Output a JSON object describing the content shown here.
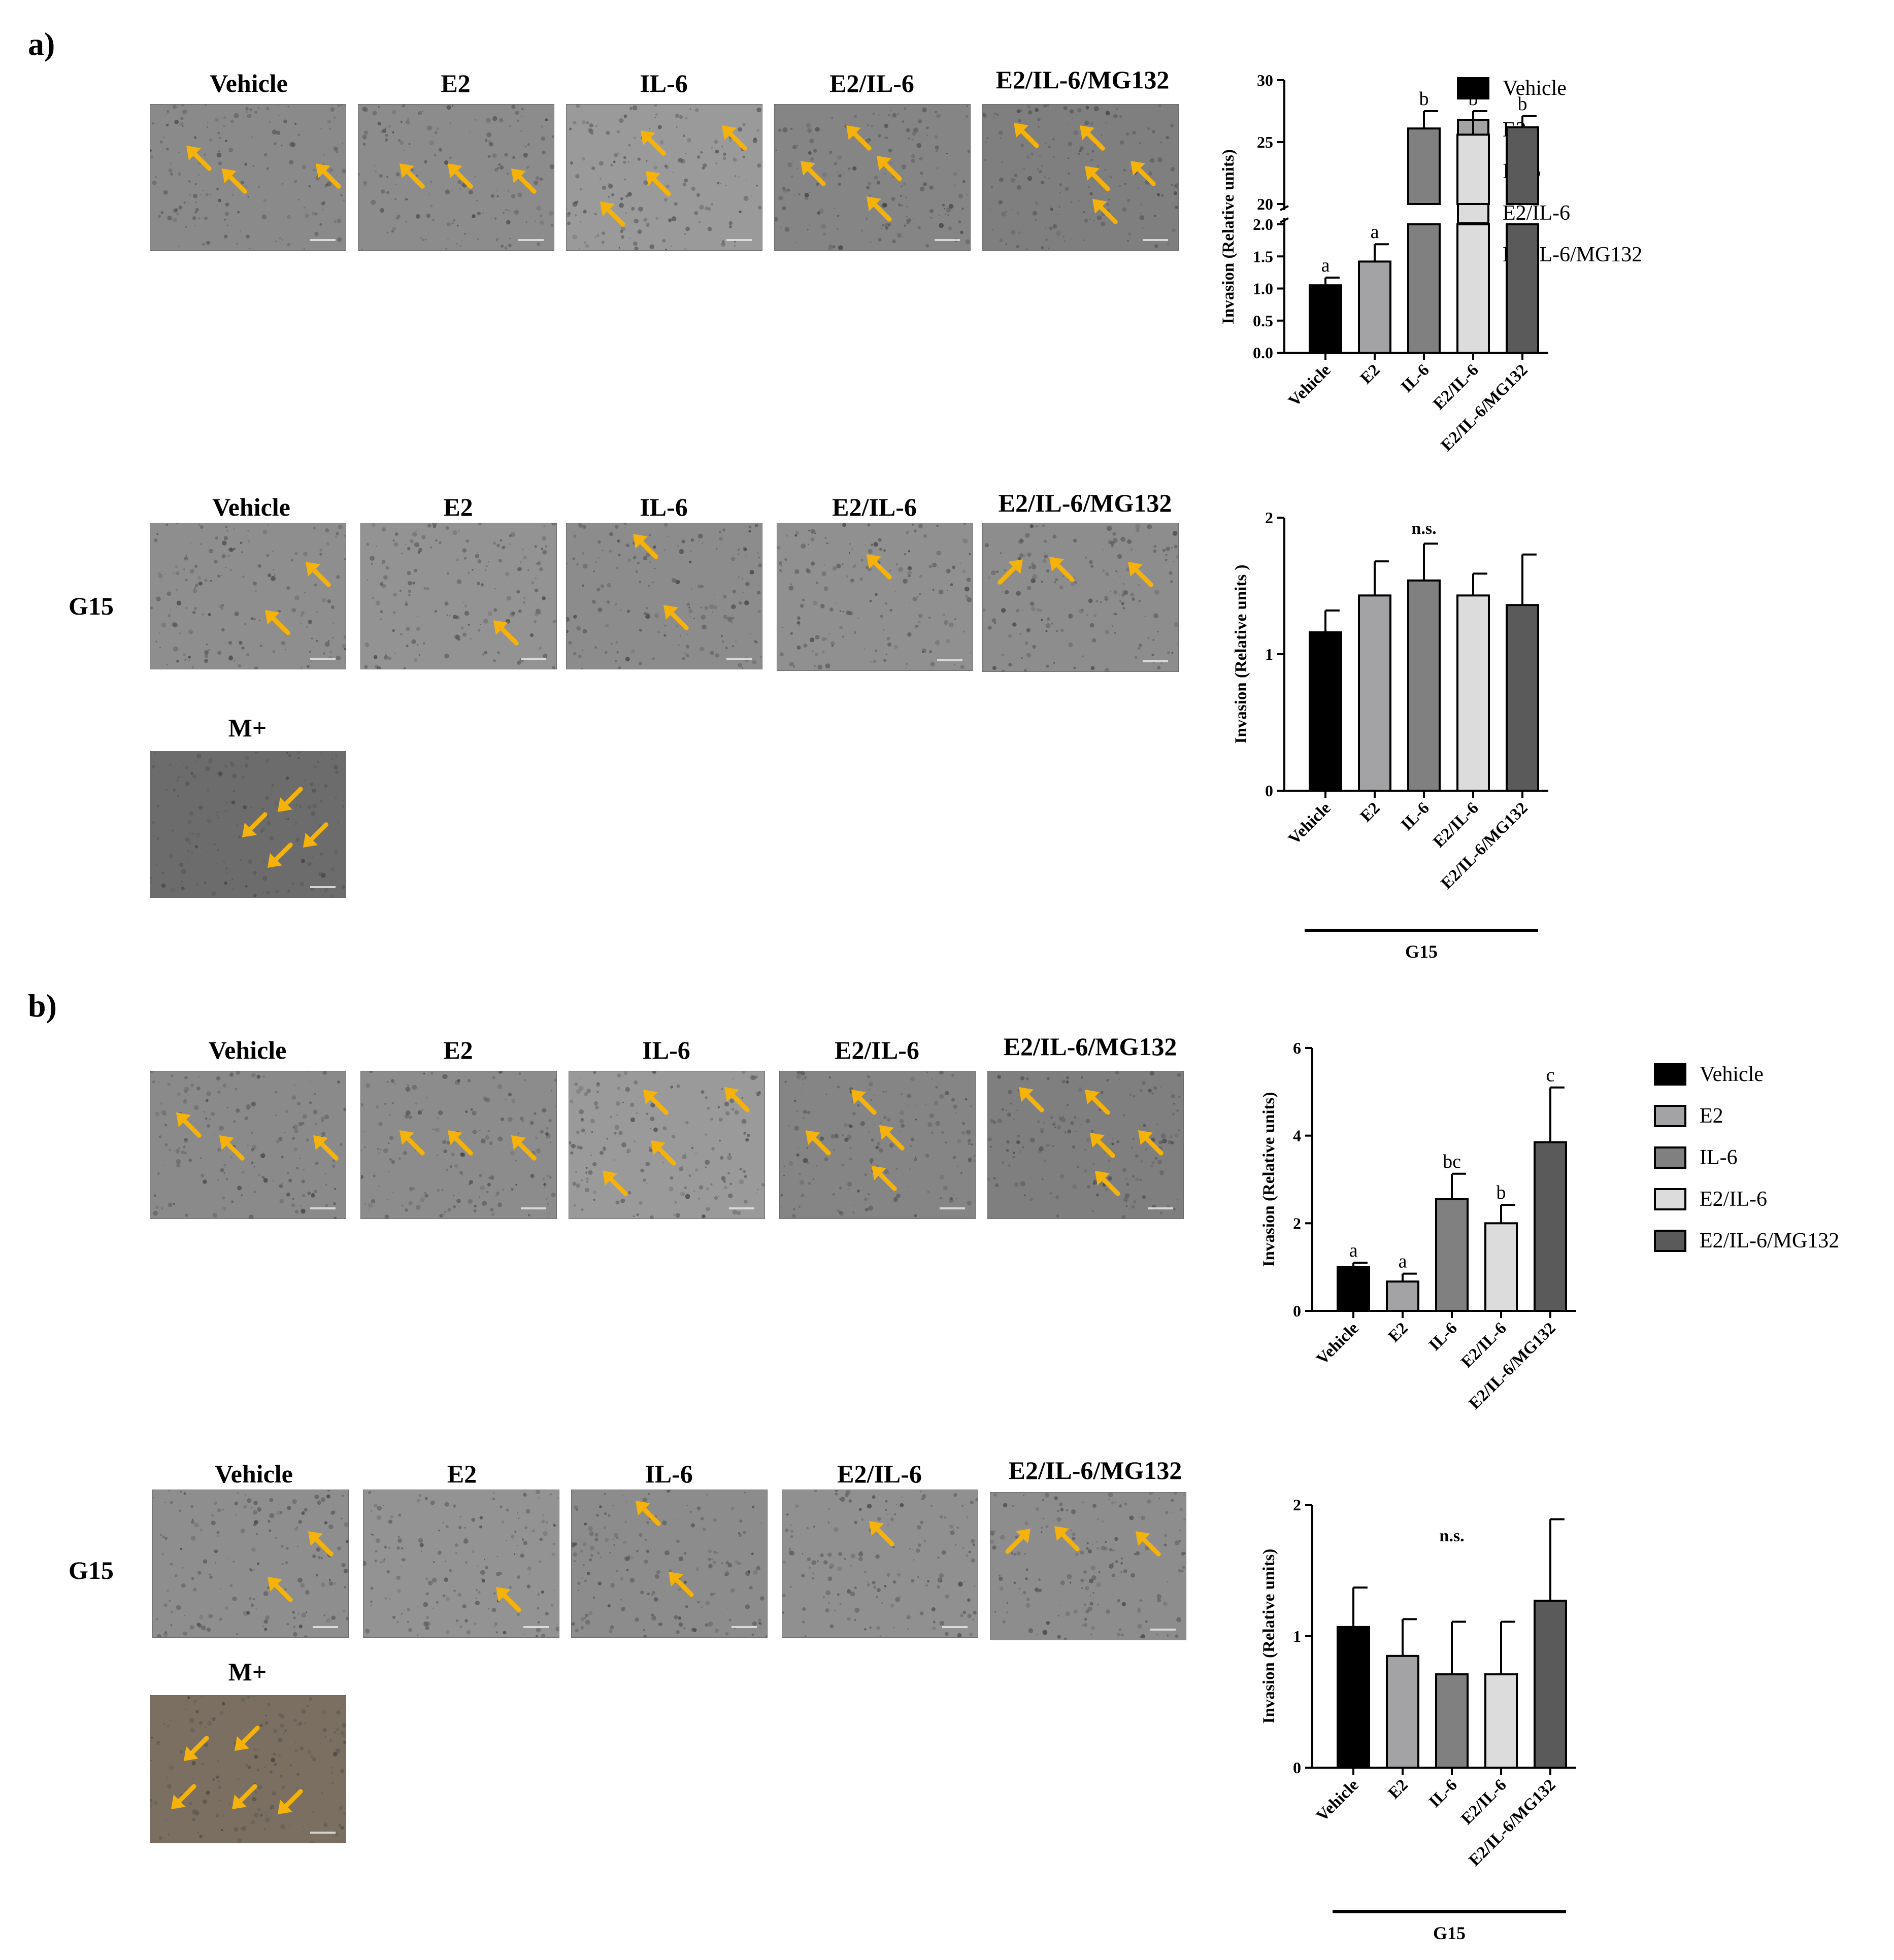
{
  "figure": {
    "panels": [
      {
        "letter": "a)",
        "top_images": [
          "Vehicle",
          "E2",
          "IL-6",
          "E2/IL-6",
          "E2/IL-6/MG132"
        ],
        "g15_row_label": "G15",
        "g15_images": [
          "Vehicle",
          "E2",
          "IL-6",
          "E2/IL-6",
          "E2/IL-6/MG132"
        ],
        "control_label": "M+"
      },
      {
        "letter": "b)",
        "top_images": [
          "Vehicle",
          "E2",
          "IL-6",
          "E2/IL-6",
          "E2/IL-6/MG132"
        ],
        "g15_row_label": "G15",
        "g15_images": [
          "Vehicle",
          "E2",
          "IL-6",
          "E2/IL-6",
          "E2/IL-6/MG132"
        ],
        "control_label": "M+"
      }
    ],
    "legends": [
      [
        "Vehicle",
        "E2",
        "IL-6",
        "E2/IL-6",
        "E2/IL-6/MG132"
      ],
      [
        "Vehicle",
        "E2",
        "IL-6",
        "E2/IL-6",
        "E2/IL-6/MG132"
      ]
    ],
    "colors": {
      "Vehicle": "#000000",
      "E2": "#a3a3a6",
      "IL-6": "#808080",
      "E2/IL-6": "#dcdcdc",
      "E2/IL-6/MG132": "#5a5a5a",
      "arrow": "#f5b20a"
    }
  },
  "chart_data": [
    {
      "type": "bar",
      "panel": "a",
      "categories": [
        "Vehicle",
        "E2",
        "IL-6",
        "E2/IL-6",
        "E2/IL-6/MG132"
      ],
      "values": [
        1.05,
        1.42,
        26.1,
        25.6,
        26.2
      ],
      "errors": [
        0.12,
        0.27,
        1.4,
        1.9,
        0.9
      ],
      "significance": [
        "a",
        "a",
        "b",
        "b",
        "b"
      ],
      "ylabel": "Invasion (Relative units)",
      "axis_break": true,
      "lower_segment": {
        "ylim": [
          0,
          2.0
        ],
        "ticks": [
          "0.0",
          "0.5",
          "1.0",
          "1.5",
          "2.0"
        ]
      },
      "upper_segment": {
        "ylim": [
          20,
          30
        ],
        "ticks": [
          "20",
          "25",
          "30"
        ]
      },
      "group_label": ""
    },
    {
      "type": "bar",
      "panel": "a",
      "categories": [
        "Vehicle",
        "E2",
        "IL-6",
        "E2/IL-6",
        "E2/IL-6/MG132"
      ],
      "values": [
        1.16,
        1.43,
        1.54,
        1.43,
        1.36
      ],
      "errors": [
        0.16,
        0.25,
        0.27,
        0.16,
        0.37
      ],
      "annotation": "n.s.",
      "ylabel": "Invasion (Relative units )",
      "ylim": [
        0,
        2
      ],
      "ticks": [
        "0",
        "1",
        "2"
      ],
      "group_label": "G15"
    },
    {
      "type": "bar",
      "panel": "b",
      "categories": [
        "Vehicle",
        "E2",
        "IL-6",
        "E2/IL-6",
        "E2/IL-6/MG132"
      ],
      "values": [
        1.0,
        0.67,
        2.55,
        2.0,
        3.85
      ],
      "errors": [
        0.1,
        0.18,
        0.58,
        0.42,
        1.25
      ],
      "significance": [
        "a",
        "a",
        "bc",
        "b",
        "c"
      ],
      "ylabel": "Invasion (Relative units)",
      "ylim": [
        0,
        6
      ],
      "ticks": [
        "0",
        "2",
        "4",
        "6"
      ],
      "group_label": ""
    },
    {
      "type": "bar",
      "panel": "b",
      "categories": [
        "Vehicle",
        "E2",
        "IL-6",
        "E2/IL-6",
        "E2/IL-6/MG132"
      ],
      "values": [
        1.07,
        0.85,
        0.71,
        0.71,
        1.27
      ],
      "errors": [
        0.3,
        0.28,
        0.4,
        0.4,
        0.62
      ],
      "annotation": "n.s.",
      "ylabel": "Invasion (Relative units)",
      "ylim": [
        0,
        2
      ],
      "ticks": [
        "0",
        "1",
        "2"
      ],
      "group_label": "G15"
    }
  ]
}
